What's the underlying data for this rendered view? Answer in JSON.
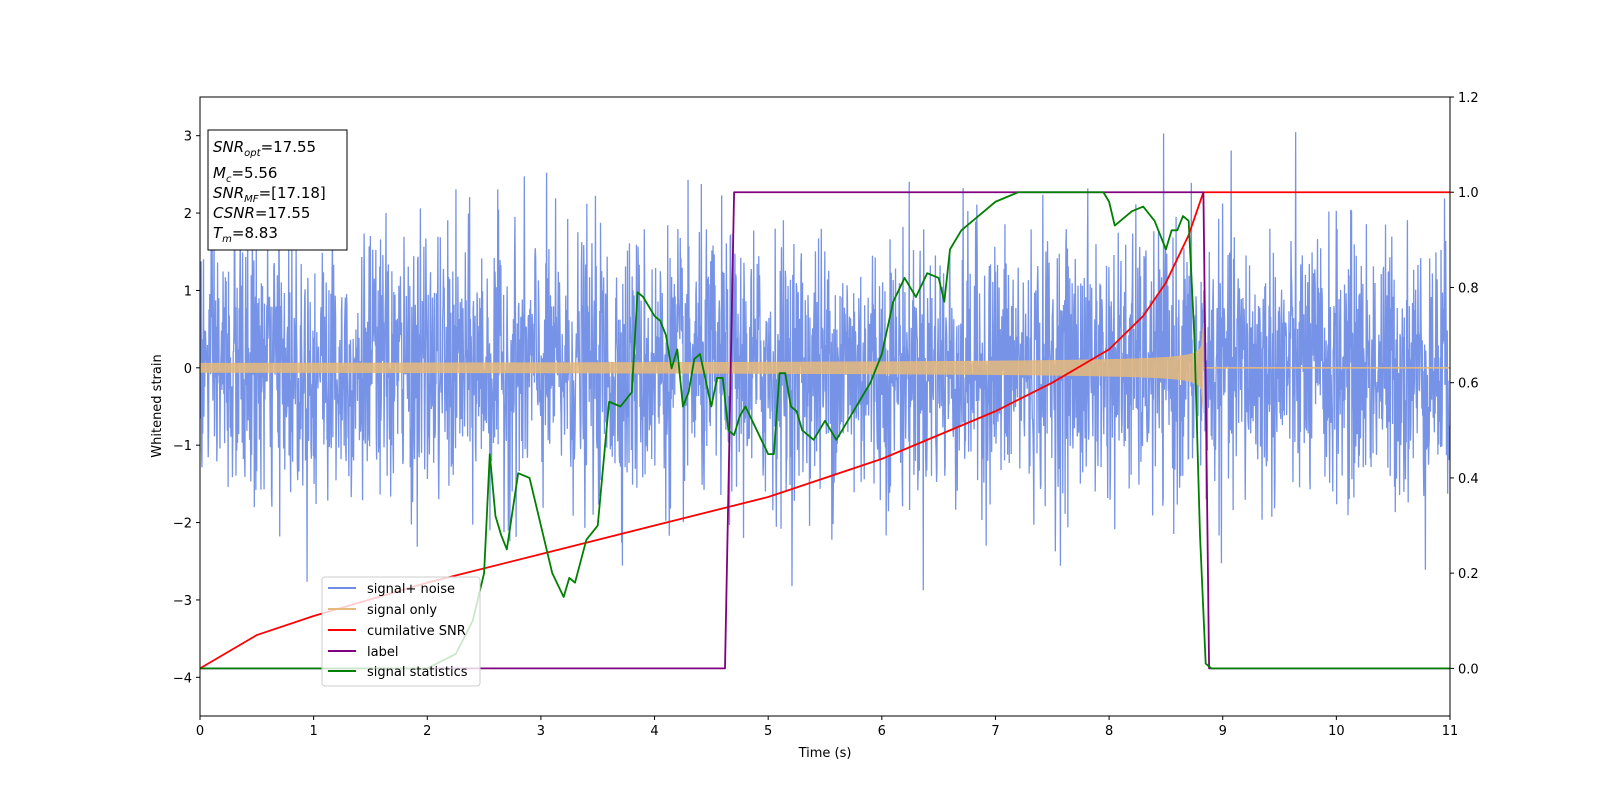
{
  "chart_data": {
    "type": "line",
    "title": "",
    "xlabel": "Time (s)",
    "ylabel": "Whitened strain",
    "y2label": "",
    "xlim": [
      0,
      11
    ],
    "ylim": [
      -4.5,
      3.5
    ],
    "y2lim": [
      -0.1,
      1.2
    ],
    "x_ticks": [
      "0",
      "1",
      "2",
      "3",
      "4",
      "5",
      "6",
      "7",
      "8",
      "9",
      "10",
      "11"
    ],
    "y_ticks": [
      "−4",
      "−3",
      "−2",
      "−1",
      "0",
      "1",
      "2",
      "3"
    ],
    "y2_ticks": [
      "0.0",
      "0.2",
      "0.4",
      "0.6",
      "0.8",
      "1.0",
      "1.2"
    ],
    "grid": false,
    "legend_position": "lower-left",
    "colors": {
      "noise": "#6f8de6",
      "signal": "#e6b87a",
      "cumulative": "#ff0000",
      "label": "#800080",
      "stats": "#008000"
    },
    "series": [
      {
        "name": "signal+ noise",
        "axis": "left",
        "style": "noise",
        "envelope_std": 0.85,
        "max": 3.17,
        "min": -4.15
      },
      {
        "name": "signal only",
        "axis": "left",
        "style": "chirp",
        "merger_time": 8.83,
        "amplitude_start": 0.06,
        "amplitude_peak": 1.2
      },
      {
        "name": "cumilative SNR",
        "axis": "right",
        "x": [
          0,
          0.5,
          1,
          2,
          3,
          4,
          5,
          6,
          7,
          7.5,
          8,
          8.3,
          8.5,
          8.7,
          8.83,
          8.84,
          11
        ],
        "y": [
          0.0,
          0.07,
          0.11,
          0.18,
          0.24,
          0.3,
          0.36,
          0.44,
          0.54,
          0.6,
          0.67,
          0.74,
          0.81,
          0.91,
          1.0,
          1.0,
          1.0
        ]
      },
      {
        "name": "label",
        "axis": "right",
        "x": [
          0,
          4.62,
          4.7,
          8.83,
          8.88,
          11
        ],
        "y": [
          0.0,
          0.0,
          1.0,
          1.0,
          0.0,
          0.0
        ]
      },
      {
        "name": "signal statistics",
        "axis": "right",
        "x": [
          0,
          2.0,
          2.25,
          2.4,
          2.5,
          2.55,
          2.6,
          2.65,
          2.7,
          2.8,
          2.9,
          3.0,
          3.1,
          3.2,
          3.25,
          3.3,
          3.4,
          3.5,
          3.6,
          3.7,
          3.8,
          3.85,
          3.9,
          4.0,
          4.05,
          4.1,
          4.15,
          4.2,
          4.25,
          4.3,
          4.35,
          4.4,
          4.5,
          4.55,
          4.6,
          4.65,
          4.7,
          4.75,
          4.8,
          4.9,
          5.0,
          5.05,
          5.1,
          5.15,
          5.2,
          5.25,
          5.3,
          5.4,
          5.5,
          5.6,
          5.7,
          5.8,
          5.9,
          6.0,
          6.1,
          6.2,
          6.3,
          6.4,
          6.5,
          6.55,
          6.6,
          6.7,
          6.8,
          6.9,
          7.0,
          7.2,
          7.4,
          7.6,
          7.8,
          7.95,
          8.0,
          8.05,
          8.1,
          8.2,
          8.3,
          8.4,
          8.5,
          8.55,
          8.6,
          8.65,
          8.7,
          8.75,
          8.8,
          8.85,
          8.9,
          11
        ],
        "y": [
          0.0,
          0.0,
          0.03,
          0.1,
          0.2,
          0.45,
          0.32,
          0.28,
          0.25,
          0.41,
          0.4,
          0.3,
          0.2,
          0.15,
          0.19,
          0.18,
          0.27,
          0.3,
          0.56,
          0.55,
          0.58,
          0.79,
          0.78,
          0.74,
          0.73,
          0.7,
          0.63,
          0.67,
          0.55,
          0.58,
          0.65,
          0.66,
          0.55,
          0.61,
          0.61,
          0.5,
          0.49,
          0.53,
          0.55,
          0.5,
          0.45,
          0.45,
          0.62,
          0.62,
          0.55,
          0.54,
          0.5,
          0.48,
          0.52,
          0.48,
          0.52,
          0.56,
          0.6,
          0.66,
          0.77,
          0.82,
          0.78,
          0.83,
          0.82,
          0.77,
          0.88,
          0.92,
          0.94,
          0.96,
          0.98,
          1.0,
          1.0,
          1.0,
          1.0,
          1.0,
          0.98,
          0.93,
          0.94,
          0.96,
          0.97,
          0.94,
          0.88,
          0.92,
          0.92,
          0.95,
          0.94,
          0.7,
          0.28,
          0.01,
          0.0,
          0.0
        ]
      }
    ]
  },
  "info_box": {
    "line1": {
      "main": "SNR",
      "sub": "opt",
      "value": "=17.55"
    },
    "line2": {
      "main": "M",
      "sub": "c",
      "value": "=5.56"
    },
    "line3": {
      "main": "SNR",
      "sub": "MF",
      "value": "=[17.18]"
    },
    "line4": {
      "main": "CSNR",
      "sub": "",
      "value": "=17.55"
    },
    "line5": {
      "main": "T",
      "sub": "m",
      "value": "=8.83"
    }
  }
}
